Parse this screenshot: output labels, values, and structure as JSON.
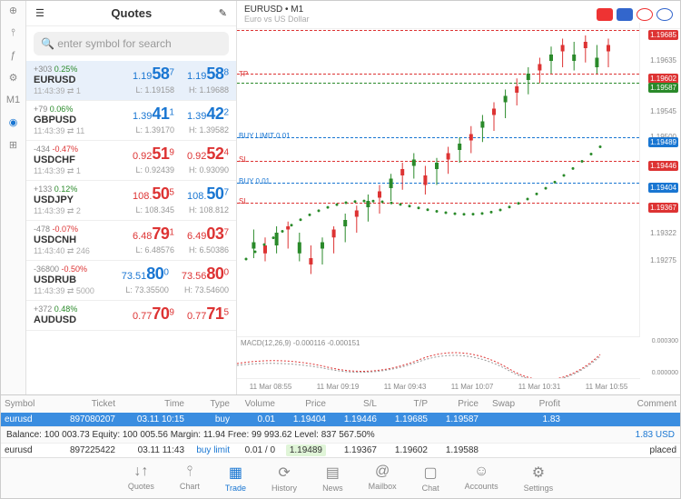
{
  "quotes_title": "Quotes",
  "search_placeholder": "enter symbol for search",
  "leftbar": [
    "⊕",
    "⫯",
    "ƒ",
    "⚙",
    "M1",
    "◉",
    "⊞"
  ],
  "symbols": [
    {
      "chg": "+303",
      "pct": "0.25%",
      "pos": true,
      "sym": "EURUSD",
      "time": "11:43:39",
      "depth": "1",
      "bid_pre": "1.19",
      "bid_big": "58",
      "bid_sup": "7",
      "ask_pre": "1.19",
      "ask_big": "58",
      "ask_sup": "8",
      "low": "L: 1.19158",
      "high": "H: 1.19688",
      "color": "blue",
      "sel": true
    },
    {
      "chg": "+79",
      "pct": "0.06%",
      "pos": true,
      "sym": "GBPUSD",
      "time": "11:43:39",
      "depth": "11",
      "bid_pre": "1.39",
      "bid_big": "41",
      "bid_sup": "1",
      "ask_pre": "1.39",
      "ask_big": "42",
      "ask_sup": "2",
      "low": "L: 1.39170",
      "high": "H: 1.39582",
      "color": "blue"
    },
    {
      "chg": "-434",
      "pct": "-0.47%",
      "pos": false,
      "sym": "USDCHF",
      "time": "11:43:39",
      "depth": "1",
      "bid_pre": "0.92",
      "bid_big": "51",
      "bid_sup": "9",
      "ask_pre": "0.92",
      "ask_big": "52",
      "ask_sup": "4",
      "low": "L: 0.92439",
      "high": "H: 0.93090",
      "color": "red"
    },
    {
      "chg": "+133",
      "pct": "0.12%",
      "pos": true,
      "sym": "USDJPY",
      "time": "11:43:39",
      "depth": "2",
      "bid_pre": "108.",
      "bid_big": "50",
      "bid_sup": "5",
      "ask_pre": "108.",
      "ask_big": "50",
      "ask_sup": "7",
      "low": "L: 108.345",
      "high": "H: 108.812",
      "color": "mix"
    },
    {
      "chg": "-478",
      "pct": "-0.07%",
      "pos": false,
      "sym": "USDCNH",
      "time": "11:43:40",
      "depth": "246",
      "bid_pre": "6.48",
      "bid_big": "79",
      "bid_sup": "1",
      "ask_pre": "6.49",
      "ask_big": "03",
      "ask_sup": "7",
      "low": "L: 6.48576",
      "high": "H: 6.50386",
      "color": "red"
    },
    {
      "chg": "-36800",
      "pct": "-0.50%",
      "pos": false,
      "sym": "USDRUB",
      "time": "11:43:39",
      "depth": "5000",
      "bid_pre": "73.51",
      "bid_big": "80",
      "bid_sup": "0",
      "ask_pre": "73.56",
      "ask_big": "80",
      "ask_sup": "0",
      "low": "L: 73.35500",
      "high": "H: 73.54600",
      "color": "mix2"
    },
    {
      "chg": "+372",
      "pct": "0.48%",
      "pos": true,
      "sym": "AUDUSD",
      "time": "",
      "depth": "",
      "bid_pre": "0.77",
      "bid_big": "70",
      "bid_sup": "9",
      "ask_pre": "0.77",
      "ask_big": "71",
      "ask_sup": "5",
      "low": "",
      "high": "",
      "color": "red"
    }
  ],
  "chart": {
    "title": "EURUSD • M1",
    "subtitle": "Euro vs US Dollar",
    "ylabels": [
      {
        "v": "1.19685",
        "t": 4,
        "cls": "hl"
      },
      {
        "v": "1.19635",
        "t": 18
      },
      {
        "v": "1.19602",
        "t": 28,
        "cls": "hl"
      },
      {
        "v": "1.19587",
        "t": 33,
        "cls": "hlg"
      },
      {
        "v": "1.19545",
        "t": 46
      },
      {
        "v": "1.19500",
        "t": 60
      },
      {
        "v": "1.19489",
        "t": 63,
        "cls": "hlb"
      },
      {
        "v": "1.19446",
        "t": 76,
        "cls": "hl"
      },
      {
        "v": "1.19404",
        "t": 88,
        "cls": "hlb"
      },
      {
        "v": "1.19367",
        "t": 99,
        "cls": "hl"
      },
      {
        "v": "1.19322",
        "t": 113
      },
      {
        "v": "1.19275",
        "t": 128
      }
    ],
    "hlines": [
      {
        "t": 4,
        "c": "red"
      },
      {
        "t": 28,
        "c": "red"
      },
      {
        "t": 33,
        "c": "green"
      },
      {
        "t": 63,
        "c": "blue"
      },
      {
        "t": 76,
        "c": "red"
      },
      {
        "t": 88,
        "c": "blue"
      },
      {
        "t": 99,
        "c": "red"
      }
    ],
    "annots": [
      {
        "txt": "TP",
        "t": 26,
        "c": "red"
      },
      {
        "txt": "BUY LIMIT 0.01",
        "t": 60,
        "c": "blue"
      },
      {
        "txt": "SL",
        "t": 73,
        "c": "red"
      },
      {
        "txt": "BUY 0.01",
        "t": 85,
        "c": "blue"
      },
      {
        "txt": "SL",
        "t": 96,
        "c": "red"
      }
    ],
    "macd_label": "MACD(12,26,9) -0.000116 -0.000151",
    "xlabels": [
      "11 Mar 08:55",
      "11 Mar 09:19",
      "11 Mar 09:43",
      "11 Mar 10:07",
      "11 Mar 10:31",
      "11 Mar 10:55"
    ],
    "macd_y": [
      "0.000300",
      "0.000000"
    ],
    "candles": [
      [
        2,
        130,
        148,
        138,
        142,
        1
      ],
      [
        5,
        135,
        150,
        140,
        145,
        0
      ],
      [
        8,
        128,
        145,
        132,
        140,
        1
      ],
      [
        11,
        125,
        142,
        130,
        128,
        0
      ],
      [
        14,
        132,
        150,
        138,
        145,
        1
      ],
      [
        17,
        140,
        158,
        148,
        152,
        0
      ],
      [
        20,
        135,
        152,
        142,
        138,
        1
      ],
      [
        23,
        128,
        145,
        135,
        130,
        0
      ],
      [
        26,
        120,
        138,
        128,
        124,
        1
      ],
      [
        29,
        115,
        132,
        122,
        118,
        0
      ],
      [
        32,
        108,
        125,
        116,
        112,
        1
      ],
      [
        35,
        102,
        120,
        110,
        106,
        0
      ],
      [
        38,
        95,
        112,
        104,
        98,
        1
      ],
      [
        41,
        88,
        105,
        96,
        92,
        0
      ],
      [
        44,
        82,
        98,
        90,
        86,
        1
      ],
      [
        47,
        90,
        108,
        96,
        102,
        0
      ],
      [
        50,
        85,
        102,
        92,
        88,
        1
      ],
      [
        53,
        78,
        95,
        86,
        82,
        0
      ],
      [
        56,
        72,
        88,
        80,
        76,
        1
      ],
      [
        59,
        65,
        82,
        74,
        70,
        0
      ],
      [
        62,
        58,
        75,
        66,
        62,
        1
      ],
      [
        65,
        50,
        68,
        58,
        54,
        0
      ],
      [
        68,
        42,
        60,
        50,
        46,
        1
      ],
      [
        71,
        35,
        52,
        44,
        40,
        0
      ],
      [
        74,
        28,
        45,
        36,
        32,
        1
      ],
      [
        77,
        22,
        38,
        30,
        26,
        0
      ],
      [
        80,
        15,
        32,
        24,
        20,
        1
      ],
      [
        83,
        10,
        28,
        18,
        14,
        0
      ],
      [
        86,
        12,
        30,
        20,
        24,
        1
      ],
      [
        89,
        8,
        25,
        16,
        12,
        0
      ],
      [
        92,
        14,
        32,
        22,
        28,
        1
      ],
      [
        95,
        10,
        28,
        18,
        14,
        0
      ]
    ]
  },
  "orders": {
    "headers": [
      "Symbol",
      "Ticket",
      "Time",
      "Type",
      "Volume",
      "Price",
      "S/L",
      "T/P",
      "Price",
      "Swap",
      "Profit",
      "Comment"
    ],
    "rows": [
      {
        "sym": "eurusd",
        "tk": "897080207",
        "tm": "03.11 10:15",
        "ty": "buy",
        "vl": "0.01",
        "pr": "1.19404",
        "sl": "1.19446",
        "tp": "1.19685",
        "p2": "1.19587",
        "sw": "",
        "pf": "1.83",
        "cm": "",
        "sel": true
      },
      {
        "sym": "eurusd",
        "tk": "897225422",
        "tm": "03.11 11:43",
        "ty": "buy limit",
        "vl": "0.01 / 0",
        "pr": "1.19489",
        "sl": "1.19367",
        "tp": "1.19602",
        "p2": "1.19588",
        "sw": "",
        "pf": "",
        "cm": "placed",
        "tyblue": true,
        "prbox": true
      }
    ],
    "balance": "Balance: 100 003.73 Equity: 100 005.56 Margin: 11.94 Free: 99 993.62 Level: 837 567.50%",
    "balance_r": "1.83  USD"
  },
  "tabs": [
    {
      "l": "Quotes",
      "i": "↓↑"
    },
    {
      "l": "Chart",
      "i": "⫯"
    },
    {
      "l": "Trade",
      "i": "▦",
      "act": true
    },
    {
      "l": "History",
      "i": "⟳"
    },
    {
      "l": "News",
      "i": "▤"
    },
    {
      "l": "Mailbox",
      "i": "@"
    },
    {
      "l": "Chat",
      "i": "▢"
    },
    {
      "l": "Accounts",
      "i": "☺"
    },
    {
      "l": "Settings",
      "i": "⚙"
    }
  ]
}
